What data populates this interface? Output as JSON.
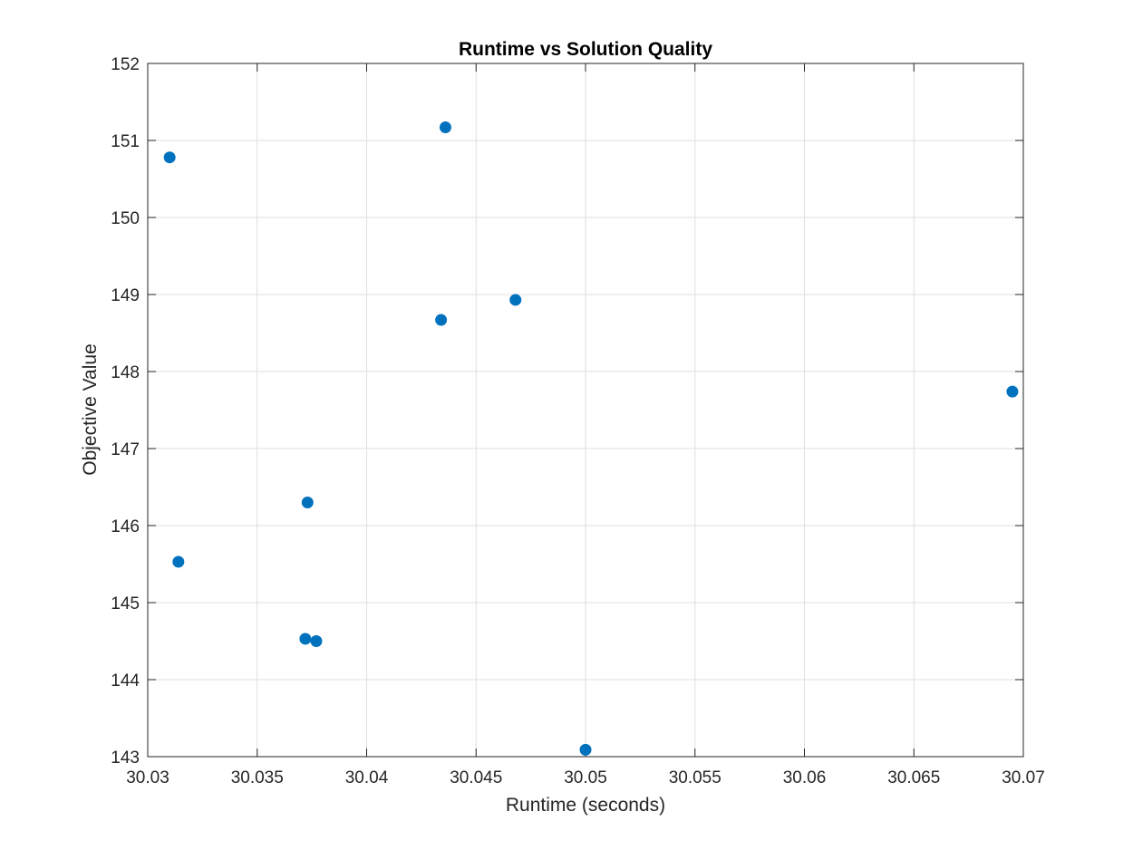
{
  "chart_data": {
    "type": "scatter",
    "title": "Runtime vs Solution Quality",
    "xlabel": "Runtime (seconds)",
    "ylabel": "Objective Value",
    "xlim": [
      30.03,
      30.07
    ],
    "ylim": [
      143,
      152
    ],
    "xticks": [
      30.03,
      30.035,
      30.04,
      30.045,
      30.05,
      30.055,
      30.06,
      30.065,
      30.07
    ],
    "xtick_labels": [
      "30.03",
      "30.035",
      "30.04",
      "30.045",
      "30.05",
      "30.055",
      "30.06",
      "30.065",
      "30.07"
    ],
    "yticks": [
      143,
      144,
      145,
      146,
      147,
      148,
      149,
      150,
      151,
      152
    ],
    "ytick_labels": [
      "143",
      "144",
      "145",
      "146",
      "147",
      "148",
      "149",
      "150",
      "151",
      "152"
    ],
    "grid": true,
    "marker_color": "#0072BD",
    "series": [
      {
        "points": [
          {
            "x": 30.031,
            "y": 150.78
          },
          {
            "x": 30.0314,
            "y": 145.53
          },
          {
            "x": 30.0372,
            "y": 144.53
          },
          {
            "x": 30.0373,
            "y": 146.3
          },
          {
            "x": 30.0377,
            "y": 144.5
          },
          {
            "x": 30.0434,
            "y": 148.67
          },
          {
            "x": 30.0436,
            "y": 151.17
          },
          {
            "x": 30.0468,
            "y": 148.93
          },
          {
            "x": 30.05,
            "y": 143.09
          },
          {
            "x": 30.0695,
            "y": 147.74
          }
        ]
      }
    ]
  }
}
